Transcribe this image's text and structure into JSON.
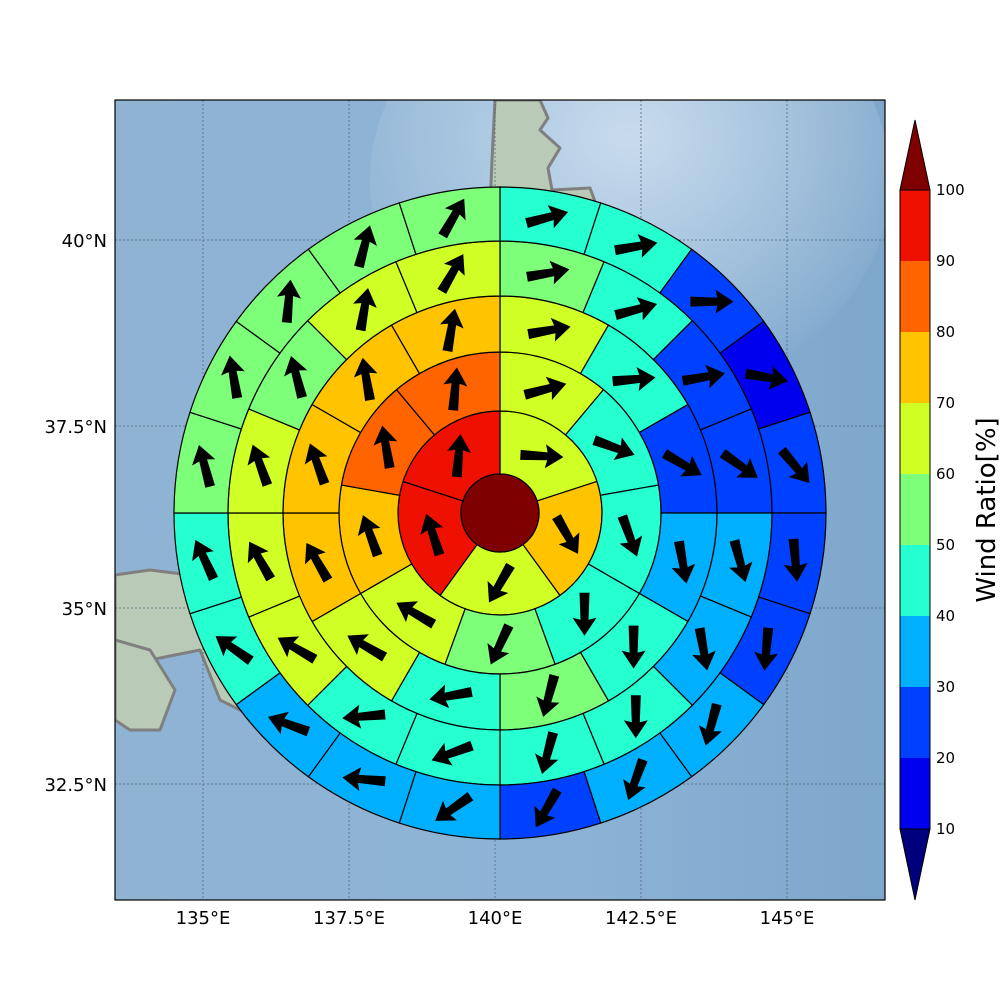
{
  "map": {
    "x_ticks": [
      "135°E",
      "137.5°E",
      "140°E",
      "142.5°E",
      "145°E"
    ],
    "y_ticks": [
      "40°N",
      "37.5°N",
      "35°N",
      "32.5°N"
    ]
  },
  "colorbar": {
    "label": "Wind Ratio[%]",
    "ticks": [
      "10",
      "20",
      "30",
      "40",
      "50",
      "60",
      "70",
      "80",
      "90",
      "100"
    ],
    "colors": [
      "#00007f",
      "#0000ee",
      "#0040ff",
      "#00b0ff",
      "#26ffd0",
      "#7dff79",
      "#d0ff26",
      "#ffc300",
      "#ff6400",
      "#ee1000",
      "#7f0000"
    ],
    "extend": "both"
  },
  "chart_data": {
    "type": "polar-grid",
    "value_unit": "%",
    "direction_convention": "degrees clockwise from north",
    "center": {
      "value": 100
    },
    "rings": [
      {
        "ring": 1,
        "sectors": [
          {
            "sector": 1,
            "value": 63,
            "direction": 93
          },
          {
            "sector": 2,
            "value": 75,
            "direction": 150
          },
          {
            "sector": 3,
            "value": 65,
            "direction": 210
          },
          {
            "sector": 4,
            "value": 92,
            "direction": 342
          },
          {
            "sector": 5,
            "value": 95,
            "direction": 5
          }
        ]
      },
      {
        "ring": 2,
        "sectors": [
          {
            "sector": 1,
            "value": 65,
            "direction": 75
          },
          {
            "sector": 2,
            "value": 45,
            "direction": 110
          },
          {
            "sector": 3,
            "value": 45,
            "direction": 160
          },
          {
            "sector": 4,
            "value": 45,
            "direction": 180
          },
          {
            "sector": 5,
            "value": 55,
            "direction": 205
          },
          {
            "sector": 6,
            "value": 60,
            "direction": 300
          },
          {
            "sector": 7,
            "value": 75,
            "direction": 340
          },
          {
            "sector": 8,
            "value": 85,
            "direction": 350
          },
          {
            "sector": 9,
            "value": 85,
            "direction": 5
          }
        ]
      },
      {
        "ring": 3,
        "sectors": [
          {
            "sector": 1,
            "value": 65,
            "direction": 80
          },
          {
            "sector": 2,
            "value": 45,
            "direction": 85
          },
          {
            "sector": 3,
            "value": 25,
            "direction": 120
          },
          {
            "sector": 4,
            "value": 35,
            "direction": 170
          },
          {
            "sector": 5,
            "value": 40,
            "direction": 180
          },
          {
            "sector": 6,
            "value": 55,
            "direction": 195
          },
          {
            "sector": 7,
            "value": 45,
            "direction": 260
          },
          {
            "sector": 8,
            "value": 60,
            "direction": 300
          },
          {
            "sector": 9,
            "value": 75,
            "direction": 330
          },
          {
            "sector": 10,
            "value": 75,
            "direction": 340
          },
          {
            "sector": 11,
            "value": 70,
            "direction": 350
          },
          {
            "sector": 12,
            "value": 75,
            "direction": 10
          }
        ]
      },
      {
        "ring": 4,
        "sectors": [
          {
            "sector": 1,
            "value": 55,
            "direction": 80
          },
          {
            "sector": 2,
            "value": 45,
            "direction": 75
          },
          {
            "sector": 3,
            "value": 20,
            "direction": 80
          },
          {
            "sector": 4,
            "value": 20,
            "direction": 125
          },
          {
            "sector": 5,
            "value": 35,
            "direction": 165
          },
          {
            "sector": 6,
            "value": 35,
            "direction": 170
          },
          {
            "sector": 7,
            "value": 45,
            "direction": 180
          },
          {
            "sector": 8,
            "value": 45,
            "direction": 195
          },
          {
            "sector": 9,
            "value": 45,
            "direction": 250
          },
          {
            "sector": 10,
            "value": 45,
            "direction": 265
          },
          {
            "sector": 11,
            "value": 60,
            "direction": 300
          },
          {
            "sector": 12,
            "value": 60,
            "direction": 330
          },
          {
            "sector": 13,
            "value": 65,
            "direction": 340
          },
          {
            "sector": 14,
            "value": 55,
            "direction": 345
          },
          {
            "sector": 15,
            "value": 60,
            "direction": 10
          },
          {
            "sector": 16,
            "value": 65,
            "direction": 30
          }
        ]
      },
      {
        "ring": 5,
        "sectors": [
          {
            "sector": 1,
            "value": 45,
            "direction": 75
          },
          {
            "sector": 2,
            "value": 45,
            "direction": 80
          },
          {
            "sector": 3,
            "value": 20,
            "direction": 90
          },
          {
            "sector": 4,
            "value": 15,
            "direction": 100
          },
          {
            "sector": 5,
            "value": 25,
            "direction": 140
          },
          {
            "sector": 6,
            "value": 25,
            "direction": 175
          },
          {
            "sector": 7,
            "value": 25,
            "direction": 185
          },
          {
            "sector": 8,
            "value": 35,
            "direction": 195
          },
          {
            "sector": 9,
            "value": 35,
            "direction": 200
          },
          {
            "sector": 10,
            "value": 25,
            "direction": 210
          },
          {
            "sector": 11,
            "value": 35,
            "direction": 235
          },
          {
            "sector": 12,
            "value": 35,
            "direction": 275
          },
          {
            "sector": 13,
            "value": 35,
            "direction": 290
          },
          {
            "sector": 14,
            "value": 45,
            "direction": 305
          },
          {
            "sector": 15,
            "value": 40,
            "direction": 335
          },
          {
            "sector": 16,
            "value": 55,
            "direction": 345
          },
          {
            "sector": 17,
            "value": 55,
            "direction": 350
          },
          {
            "sector": 18,
            "value": 55,
            "direction": 5
          },
          {
            "sector": 19,
            "value": 55,
            "direction": 15
          },
          {
            "sector": 20,
            "value": 55,
            "direction": 30
          }
        ]
      }
    ]
  }
}
